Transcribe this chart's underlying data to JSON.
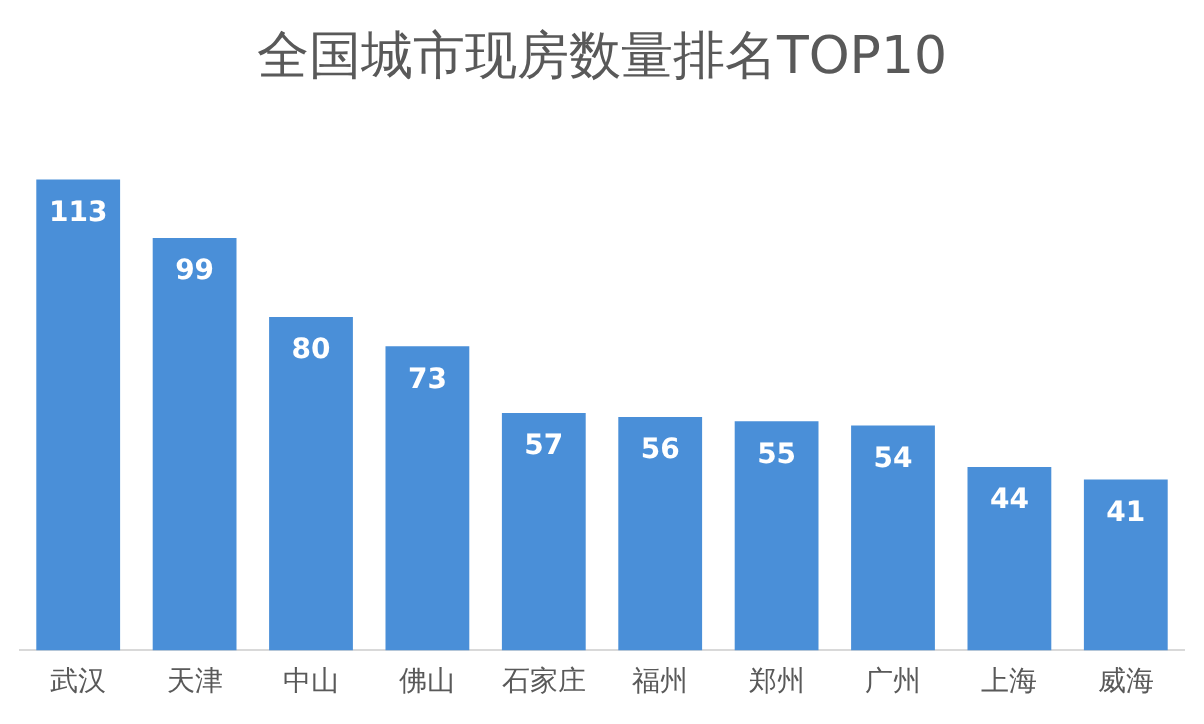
{
  "chart_data": {
    "type": "bar",
    "title": "全国城市现房数量排名TOP10",
    "categories": [
      "武汉",
      "天津",
      "中山",
      "佛山",
      "石家庄",
      "福州",
      "郑州",
      "广州",
      "上海",
      "威海"
    ],
    "values": [
      113,
      99,
      80,
      73,
      57,
      56,
      55,
      54,
      44,
      41
    ],
    "color": "#4a8fd8",
    "data_labels": true,
    "grid": false,
    "legend": false
  }
}
